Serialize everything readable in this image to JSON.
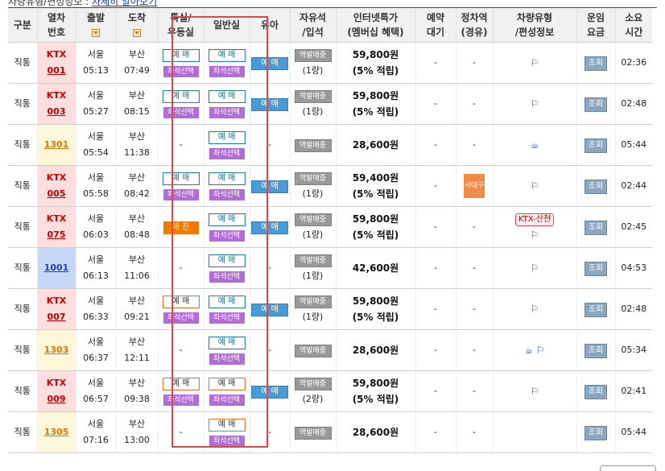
{
  "top": {
    "label": "차량유형/편성정보 : ",
    "link": "자세히 알아보기"
  },
  "headers": {
    "type": "구분",
    "train_no_1": "열차",
    "train_no_2": "번호",
    "depart": "출발",
    "arrive": "도착",
    "special_1": "특실/",
    "special_2": "우등실",
    "general": "일반실",
    "infant": "유아",
    "free_1": "자유석",
    "free_2": "/입석",
    "web_1": "인터넷특가",
    "web_2": "(멤버십 혜택)",
    "reserve_1": "예약",
    "reserve_2": "대기",
    "stop_1": "정차역",
    "stop_2": "(경유)",
    "vehicle_1": "차량유형",
    "vehicle_2": "/편성정보",
    "fare_1": "운임",
    "fare_2": "요금",
    "time_1": "소요",
    "time_2": "시간"
  },
  "labels": {
    "book": "예 매",
    "seat": "좌석선택",
    "closed": "매 진",
    "infant": "예 매",
    "standing": "역발매중",
    "lookup": "조회",
    "dash": "-"
  },
  "rows": [
    {
      "type": "직통",
      "name": "KTX",
      "num": "001",
      "dep_st": "서울",
      "dep": "05:13",
      "arr_st": "부산",
      "arr": "07:49",
      "free_cnt": "(1량)",
      "price": "59,800원",
      "pts": "(5% 적립)",
      "reserve": "-",
      "stop": "-",
      "duration": "02:36"
    },
    {
      "type": "직통",
      "name": "KTX",
      "num": "003",
      "dep_st": "서울",
      "dep": "05:27",
      "arr_st": "부산",
      "arr": "08:15",
      "free_cnt": "(1량)",
      "price": "59,800원",
      "pts": "(5% 적립)",
      "reserve": "-",
      "stop": "-",
      "duration": "02:48"
    },
    {
      "type": "직통",
      "name": "",
      "num": "1301",
      "dep_st": "서울",
      "dep": "05:54",
      "arr_st": "부산",
      "arr": "11:38",
      "free_cnt": "",
      "price": "28,600원",
      "pts": "",
      "reserve": "-",
      "stop": "-",
      "duration": "05:44"
    },
    {
      "type": "직통",
      "name": "KTX",
      "num": "005",
      "dep_st": "서울",
      "dep": "05:58",
      "arr_st": "부산",
      "arr": "08:42",
      "free_cnt": "(1량)",
      "price": "59,400원",
      "pts": "(5% 적립)",
      "reserve": "-",
      "stop": "서대구",
      "duration": "02:44"
    },
    {
      "type": "직통",
      "name": "KTX",
      "num": "075",
      "dep_st": "서울",
      "dep": "06:03",
      "arr_st": "부산",
      "arr": "08:48",
      "free_cnt": "(1량)",
      "price": "59,800원",
      "pts": "(5% 적립)",
      "reserve": "-",
      "stop": "-",
      "vehicle_tag": "KTX-산천",
      "duration": "02:45"
    },
    {
      "type": "직통",
      "name": "",
      "num": "1001",
      "dep_st": "서울",
      "dep": "06:13",
      "arr_st": "부산",
      "arr": "11:06",
      "free_cnt": "(1량)",
      "price": "42,600원",
      "pts": "",
      "reserve": "-",
      "stop": "-",
      "duration": "04:53"
    },
    {
      "type": "직통",
      "name": "KTX",
      "num": "007",
      "dep_st": "서울",
      "dep": "06:33",
      "arr_st": "부산",
      "arr": "09:21",
      "free_cnt": "(1량)",
      "price": "59,800원",
      "pts": "(5% 적립)",
      "reserve": "-",
      "stop": "-",
      "duration": "02:48"
    },
    {
      "type": "직통",
      "name": "",
      "num": "1303",
      "dep_st": "서울",
      "dep": "06:37",
      "arr_st": "부산",
      "arr": "12:11",
      "free_cnt": "",
      "price": "28,600원",
      "pts": "",
      "reserve": "-",
      "stop": "-",
      "duration": "05:34"
    },
    {
      "type": "직통",
      "name": "KTX",
      "num": "009",
      "dep_st": "서울",
      "dep": "06:57",
      "arr_st": "부산",
      "arr": "09:38",
      "free_cnt": "(2량)",
      "price": "59,800원",
      "pts": "(5% 적립)",
      "reserve": "-",
      "stop": "-",
      "duration": "02:41"
    },
    {
      "type": "직통",
      "name": "",
      "num": "1305",
      "dep_st": "서울",
      "dep": "07:16",
      "arr_st": "부산",
      "arr": "13:00",
      "free_cnt": "",
      "price": "28,600원",
      "pts": "",
      "reserve": "-",
      "stop": "-",
      "duration": "05:44"
    }
  ],
  "colors": {
    "ktx_bg": "#ffdede",
    "mugunghwa_bg": "#fff7d9",
    "itx_bg": "#c5d7f7",
    "highlight_frame": "#e04848"
  }
}
